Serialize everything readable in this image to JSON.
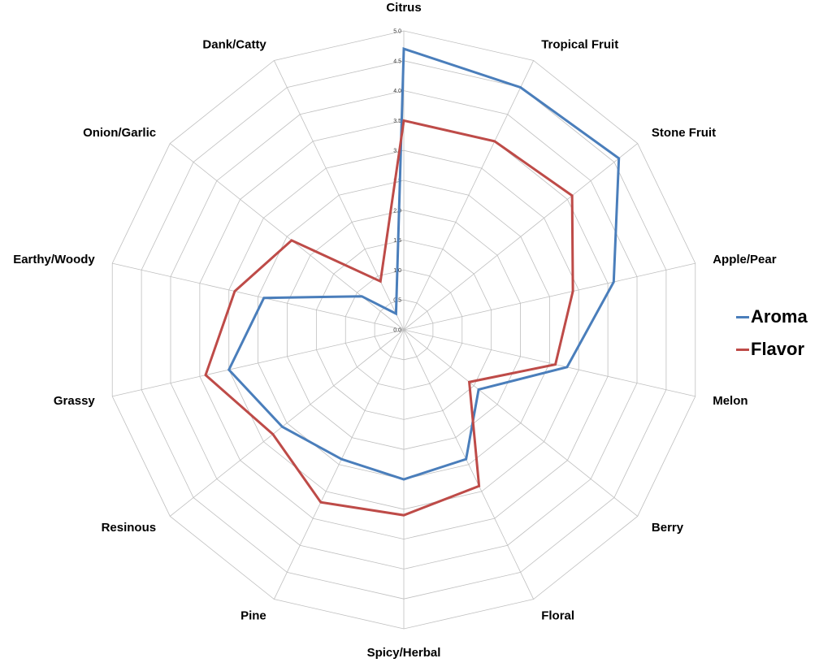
{
  "chart_data": {
    "type": "radar",
    "title": "",
    "axes": [
      "Citrus",
      "Tropical Fruit",
      "Stone Fruit",
      "Apple/Pear",
      "Melon",
      "Berry",
      "Floral",
      "Spicy/Herbal",
      "Pine",
      "Resinous",
      "Grassy",
      "Earthy/Woody",
      "Onion/Garlic",
      "Dank/Catty"
    ],
    "rlim": [
      0,
      5
    ],
    "ticks": [
      "0.0",
      "0.5",
      "1.0",
      "1.5",
      "2.0",
      "2.5",
      "3.0",
      "3.5",
      "4.0",
      "4.5",
      "5.0"
    ],
    "grid": true,
    "legend_position": "right",
    "series": [
      {
        "name": "Aroma",
        "color": "#4a7ebb",
        "values": [
          4.7,
          4.5,
          4.6,
          3.6,
          2.8,
          1.6,
          2.4,
          2.5,
          2.4,
          2.6,
          3.0,
          2.4,
          0.9,
          0.3
        ]
      },
      {
        "name": "Flavor",
        "color": "#be4b48",
        "values": [
          3.5,
          3.5,
          3.6,
          2.9,
          2.6,
          1.4,
          2.9,
          3.1,
          3.2,
          2.8,
          3.4,
          2.9,
          2.4,
          0.9
        ]
      }
    ]
  }
}
